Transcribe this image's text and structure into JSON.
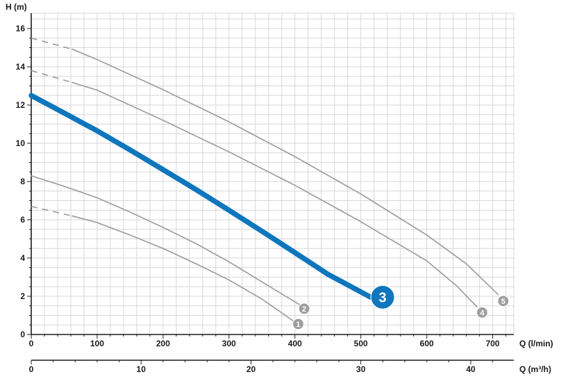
{
  "chart_data": {
    "type": "line",
    "y_axis": {
      "label": "H (m)",
      "min": 0,
      "max": 16.8,
      "major_tick": 2,
      "minor_tick": 0.5
    },
    "x_axis": {
      "label": "Q (l/min)",
      "min": 0,
      "max": 732,
      "major_tick": 100,
      "minor_tick": 20
    },
    "x_axis_2": {
      "label": "Q (m³/h)",
      "min": 0,
      "max": 43.9,
      "major_tick": 10,
      "minor_tick": 2,
      "lmin_per_unit": 16.667
    },
    "colors": {
      "accent_blue": "#0e76bc",
      "curve_gray": "#9e9e9e",
      "grid": "#d7d7d7",
      "axis": "#1a1a1a",
      "text": "#1a1a1a",
      "marker_text": "#ffffff"
    },
    "series": [
      {
        "name": "curve-1",
        "marker_label": "1",
        "color": "#9e9e9e",
        "stroke_width": 1.7,
        "dash_points": [
          [
            0,
            6.7
          ],
          [
            62,
            6.2
          ]
        ],
        "points": [
          [
            62,
            6.2
          ],
          [
            100,
            5.85
          ],
          [
            150,
            5.2
          ],
          [
            200,
            4.5
          ],
          [
            250,
            3.7
          ],
          [
            300,
            2.85
          ],
          [
            350,
            1.85
          ],
          [
            398,
            0.7
          ]
        ],
        "marker": {
          "x": 405,
          "y": 0.55,
          "r": 8,
          "font_size": 11
        }
      },
      {
        "name": "curve-2",
        "marker_label": "2",
        "color": "#9e9e9e",
        "stroke_width": 1.7,
        "dash_points": [],
        "points": [
          [
            0,
            8.3
          ],
          [
            50,
            7.75
          ],
          [
            100,
            7.15
          ],
          [
            150,
            6.4
          ],
          [
            200,
            5.6
          ],
          [
            250,
            4.75
          ],
          [
            300,
            3.8
          ],
          [
            350,
            2.75
          ],
          [
            410,
            1.5
          ]
        ],
        "marker": {
          "x": 414,
          "y": 1.35,
          "r": 8,
          "font_size": 11
        }
      },
      {
        "name": "curve-4",
        "marker_label": "4",
        "color": "#9e9e9e",
        "stroke_width": 1.7,
        "dash_points": [
          [
            0,
            13.8
          ],
          [
            62,
            13.18
          ]
        ],
        "points": [
          [
            62,
            13.18
          ],
          [
            100,
            12.78
          ],
          [
            200,
            11.2
          ],
          [
            300,
            9.55
          ],
          [
            400,
            7.8
          ],
          [
            500,
            5.9
          ],
          [
            600,
            3.85
          ],
          [
            645,
            2.55
          ],
          [
            676,
            1.45
          ]
        ],
        "marker": {
          "x": 684,
          "y": 1.15,
          "r": 8,
          "font_size": 11
        }
      },
      {
        "name": "curve-5",
        "marker_label": "5",
        "color": "#9e9e9e",
        "stroke_width": 1.7,
        "dash_points": [
          [
            0,
            15.5
          ],
          [
            62,
            14.92
          ]
        ],
        "points": [
          [
            62,
            14.92
          ],
          [
            100,
            14.38
          ],
          [
            200,
            12.8
          ],
          [
            300,
            11.12
          ],
          [
            400,
            9.3
          ],
          [
            500,
            7.35
          ],
          [
            600,
            5.2
          ],
          [
            660,
            3.7
          ],
          [
            708,
            2.1
          ]
        ],
        "marker": {
          "x": 716,
          "y": 1.75,
          "r": 8,
          "font_size": 11
        }
      },
      {
        "name": "curve-3",
        "marker_label": "3",
        "color": "#0e76bc",
        "stroke_width": 7.5,
        "dash_points": [],
        "points": [
          [
            0,
            12.5
          ],
          [
            50,
            11.58
          ],
          [
            100,
            10.65
          ],
          [
            150,
            9.65
          ],
          [
            200,
            8.62
          ],
          [
            250,
            7.58
          ],
          [
            300,
            6.5
          ],
          [
            350,
            5.4
          ],
          [
            400,
            4.28
          ],
          [
            450,
            3.15
          ],
          [
            515,
            1.95
          ]
        ],
        "marker": {
          "x": 533,
          "y": 1.95,
          "r": 17,
          "font_size": 20
        }
      }
    ]
  }
}
